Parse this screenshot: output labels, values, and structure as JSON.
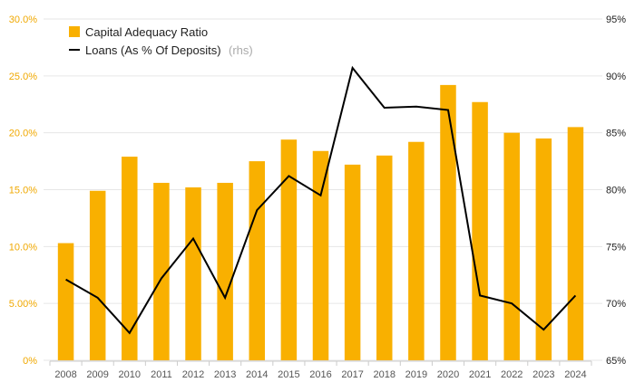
{
  "chart_data": {
    "type": "bar+line",
    "categories": [
      "2008",
      "2009",
      "2010",
      "2011",
      "2012",
      "2013",
      "2014",
      "2015",
      "2016",
      "2017",
      "2018",
      "2019",
      "2020",
      "2021",
      "2022",
      "2023",
      "2024"
    ],
    "series": [
      {
        "name": "Capital Adequacy Ratio",
        "type": "bar",
        "axis": "left",
        "color": "#f9b000",
        "values": [
          10.3,
          14.9,
          17.9,
          15.6,
          15.2,
          15.6,
          17.5,
          19.4,
          18.4,
          17.2,
          18.0,
          19.2,
          24.2,
          22.7,
          20.0,
          19.5,
          20.5
        ]
      },
      {
        "name": "Loans (As % Of Deposits)",
        "suffix": "(rhs)",
        "type": "line",
        "axis": "right",
        "color": "#000000",
        "values": [
          72.1,
          70.5,
          67.4,
          72.2,
          75.7,
          70.5,
          78.2,
          81.2,
          79.5,
          90.7,
          87.2,
          87.3,
          87.0,
          70.7,
          70.0,
          67.7,
          70.7
        ]
      }
    ],
    "y_left": {
      "min": 0,
      "max": 30,
      "ticks": [
        "0%",
        "5.00%",
        "10.0%",
        "15.0%",
        "20.0%",
        "25.0%",
        "30.0%"
      ]
    },
    "y_right": {
      "min": 65,
      "max": 95,
      "ticks": [
        "65%",
        "70%",
        "75%",
        "80%",
        "85%",
        "90%",
        "95%"
      ]
    },
    "legend": {
      "position": "top-left",
      "items": [
        {
          "label": "Capital Adequacy Ratio",
          "suffix": ""
        },
        {
          "label": "Loans (As % Of Deposits)",
          "suffix": "(rhs)"
        }
      ]
    },
    "grid": true,
    "title": "",
    "xlabel": "",
    "ylabel": ""
  }
}
